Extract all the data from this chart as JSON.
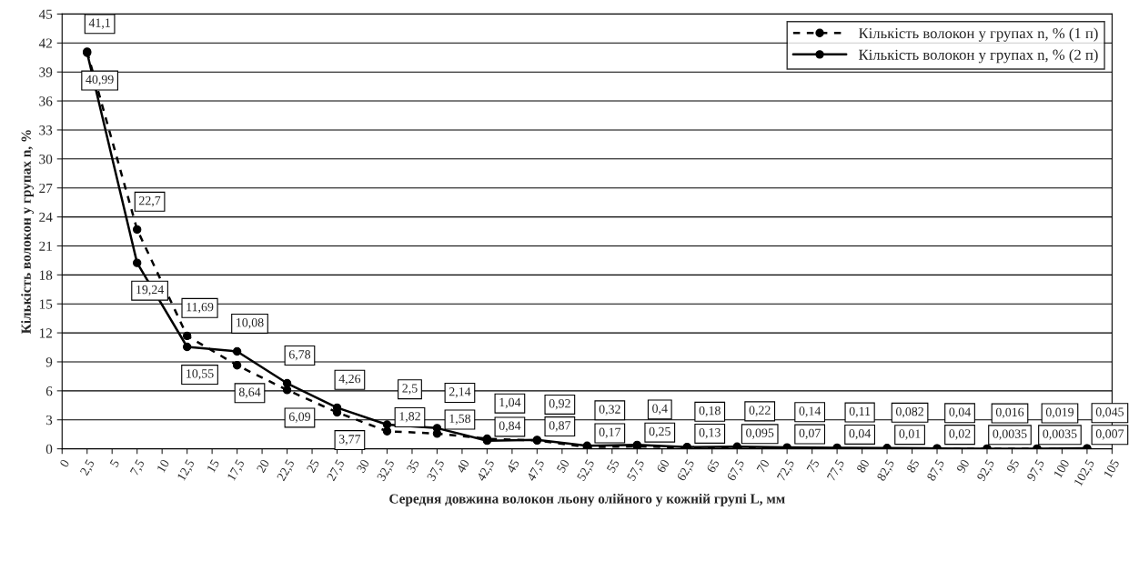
{
  "chart_data": {
    "type": "line",
    "xlabel": "Середня довжина волокон льону олійного у кожній групі L, мм",
    "ylabel": "Кількість волокон у групах n, %",
    "x": [
      2.5,
      7.5,
      12.5,
      17.5,
      22.5,
      27.5,
      32.5,
      37.5,
      42.5,
      47.5,
      52.5,
      57.5,
      62.5,
      67.5,
      72.5,
      77.5,
      82.5,
      87.5,
      92.5,
      97.5,
      102.5
    ],
    "series": [
      {
        "name": "Кількість волокон у групах n, % (1 п)",
        "color": "#000000",
        "line_style": "dashed",
        "values": [
          41.1,
          22.7,
          11.69,
          8.64,
          6.09,
          3.77,
          1.82,
          1.58,
          1.04,
          0.87,
          0.17,
          0.25,
          0.13,
          0.095,
          0.07,
          0.04,
          0.01,
          0.02,
          0.0035,
          0.0035,
          0.007
        ],
        "value_labels": [
          "41,1",
          "22,7",
          "11,69",
          "8,64",
          "6,09",
          "3,77",
          "1,82",
          "1,58",
          "1,04",
          "0,87",
          "0,17",
          "0,25",
          "0,13",
          "0,095",
          "0,07",
          "0,04",
          "0,01",
          "0,02",
          "0,0035",
          "0,0035",
          "0,007"
        ]
      },
      {
        "name": "Кількість волокон у групах n, % (2 п)",
        "color": "#000000",
        "line_style": "solid",
        "values": [
          40.99,
          19.24,
          10.55,
          10.08,
          6.78,
          4.26,
          2.5,
          2.14,
          0.84,
          0.92,
          0.32,
          0.4,
          0.18,
          0.22,
          0.14,
          0.11,
          0.082,
          0.04,
          0.016,
          0.019,
          0.045
        ],
        "value_labels": [
          "40,99",
          "19,24",
          "10,55",
          "10,08",
          "6,78",
          "4,26",
          "2,5",
          "2,14",
          "0,84",
          "0,92",
          "0,32",
          "0,4",
          "0,18",
          "0,22",
          "0,14",
          "0,11",
          "0,082",
          "0,04",
          "0,016",
          "0,019",
          "0,045"
        ]
      }
    ],
    "xlim": [
      0,
      105
    ],
    "xticks": [
      0,
      {
        "value": 2.5,
        "label": "2,5"
      },
      5,
      {
        "value": 7.5,
        "label": "7,5"
      },
      10,
      {
        "value": 12.5,
        "label": "12,5"
      },
      15,
      {
        "value": 17.5,
        "label": "17,5"
      },
      20,
      {
        "value": 22.5,
        "label": "22,5"
      },
      25,
      {
        "value": 27.5,
        "label": "27,5"
      },
      30,
      {
        "value": 32.5,
        "label": "32,5"
      },
      35,
      {
        "value": 37.5,
        "label": "37,5"
      },
      40,
      {
        "value": 42.5,
        "label": "42,5"
      },
      45,
      {
        "value": 47.5,
        "label": "47,5"
      },
      50,
      {
        "value": 52.5,
        "label": "52,5"
      },
      55,
      {
        "value": 57.5,
        "label": "57,5"
      },
      60,
      {
        "value": 62.5,
        "label": "62,5"
      },
      65,
      {
        "value": 67.5,
        "label": "67,5"
      },
      70,
      {
        "value": 72.5,
        "label": "72,5"
      },
      75,
      {
        "value": 77.5,
        "label": "77,5"
      },
      80,
      {
        "value": 82.5,
        "label": "82,5"
      },
      85,
      {
        "value": 87.5,
        "label": "87,5"
      },
      90,
      {
        "value": 92.5,
        "label": "92,5"
      },
      95,
      {
        "value": 97.5,
        "label": "97,5"
      },
      100,
      {
        "value": 102.5,
        "label": "102,5"
      },
      105
    ],
    "ylim": [
      0,
      45
    ],
    "yticks": [
      0,
      3,
      6,
      9,
      12,
      15,
      18,
      21,
      24,
      27,
      30,
      33,
      36,
      39,
      42,
      45
    ],
    "grid": "y",
    "legend": "top right",
    "marker": "circle"
  }
}
